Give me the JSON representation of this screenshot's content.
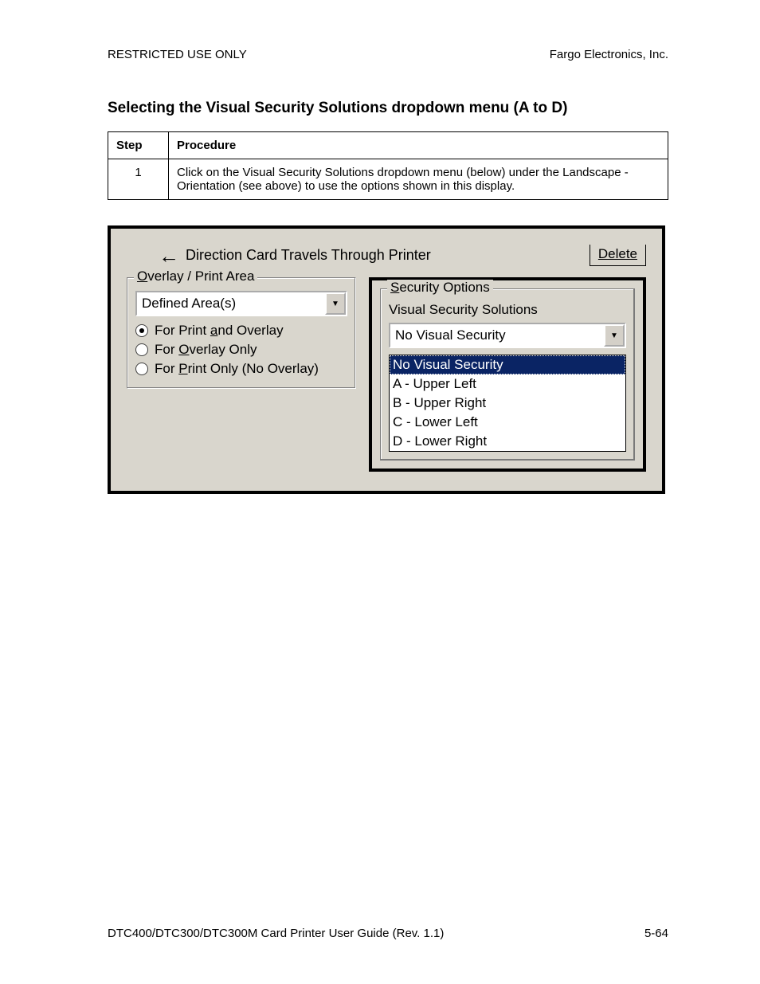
{
  "header": {
    "left": "RESTRICTED USE ONLY",
    "right": "Fargo Electronics, Inc."
  },
  "section_title": "Selecting the Visual Security Solutions dropdown menu (A to D)",
  "table": {
    "col_step": "Step",
    "col_procedure": "Procedure",
    "rows": [
      {
        "step": "1",
        "procedure": "Click on the Visual Security Solutions dropdown menu (below) under the Landscape - Orientation (see above) to use the options shown in this display."
      }
    ]
  },
  "ui": {
    "direction_label": "Direction Card Travels Through Printer",
    "delete_label": "Delete",
    "overlay_group": {
      "legend": "Overlay / Print Area",
      "combo_value": "Defined Area(s)",
      "radios": {
        "print_and_overlay": "For Print and Overlay",
        "overlay_only": "For Overlay Only",
        "print_only": "For Print Only (No Overlay)"
      },
      "selected": "print_and_overlay"
    },
    "security_group": {
      "legend": "Security Options",
      "sub_label": "Visual Security Solutions",
      "combo_value": "No Visual Security",
      "options": [
        "No Visual Security",
        "A - Upper Left",
        "B - Upper Right",
        "C - Lower Left",
        "D - Lower Right"
      ],
      "selected_index": 0
    },
    "colors": {
      "panel_bg": "#d9d6cd",
      "dropdown_selected_bg": "#0a2464",
      "dropdown_selected_fg": "#ffffff"
    }
  },
  "footer": {
    "left": "DTC400/DTC300/DTC300M Card Printer User Guide (Rev. 1.1)",
    "right": "5-64"
  }
}
